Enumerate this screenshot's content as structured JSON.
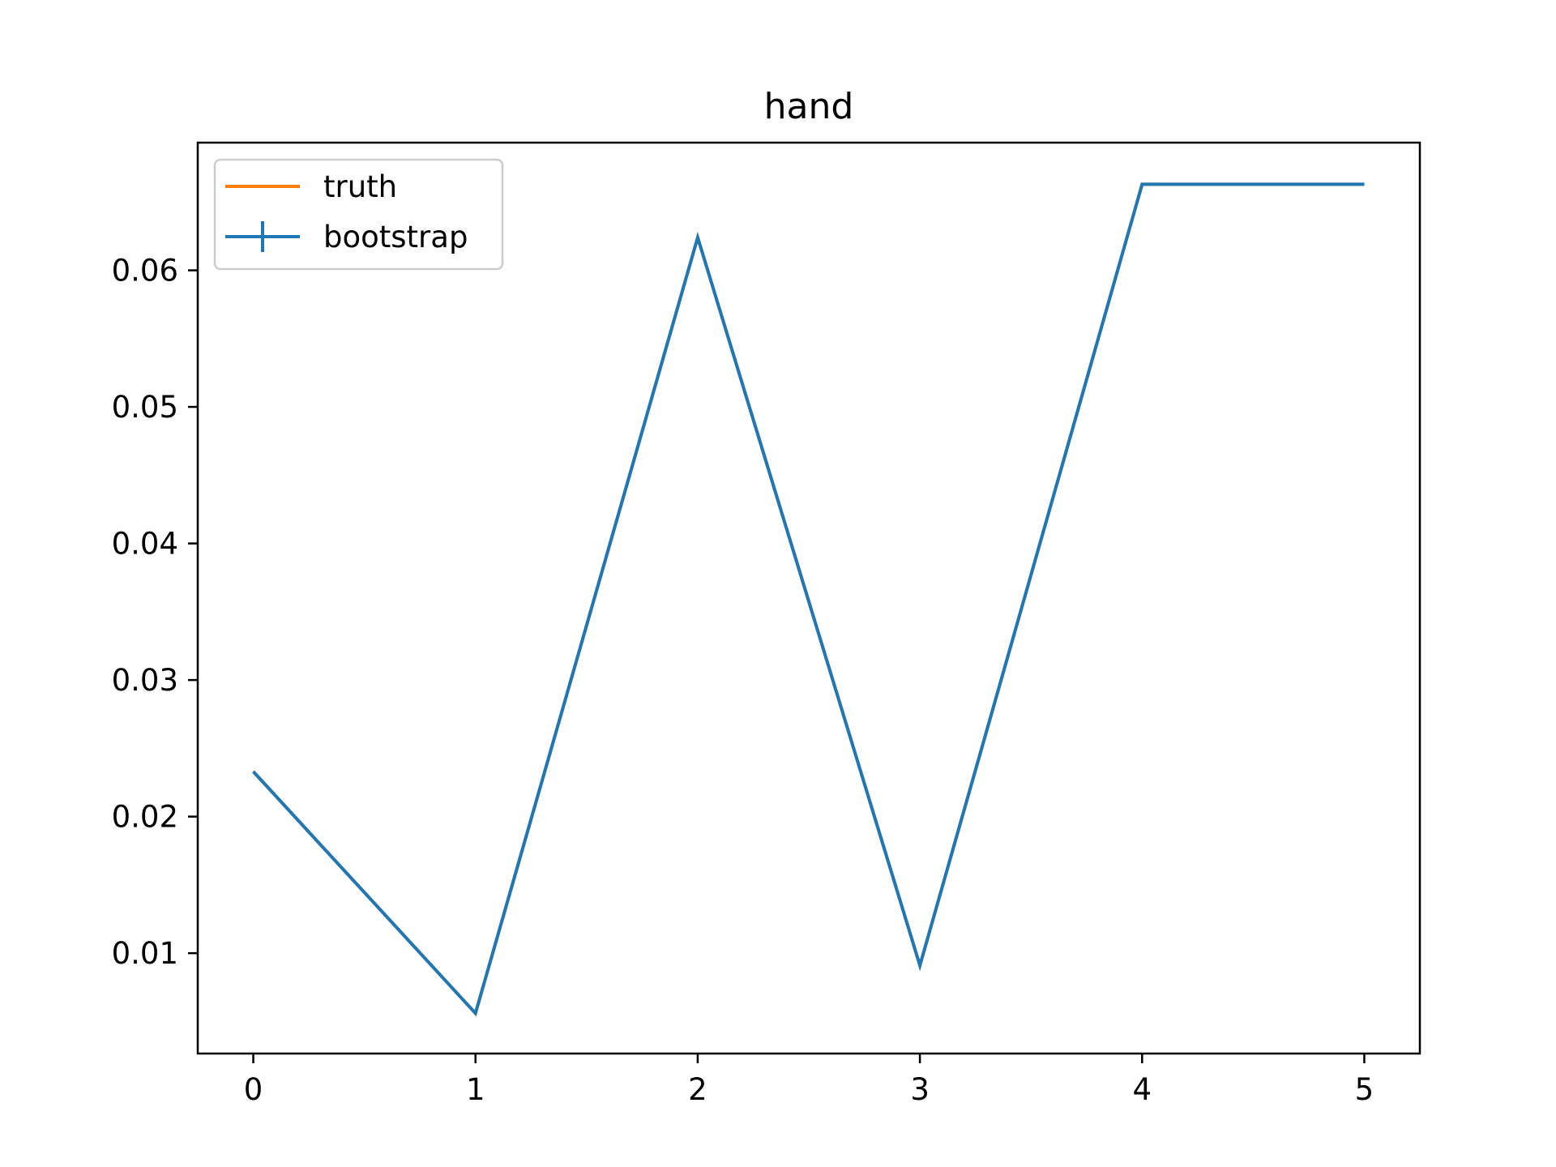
{
  "chart_data": {
    "type": "line",
    "title": "hand",
    "xlabel": "",
    "ylabel": "",
    "xlim": [
      -0.25,
      5.25
    ],
    "ylim": [
      0.00265,
      0.06935
    ],
    "x_ticks": [
      0,
      1,
      2,
      3,
      4,
      5
    ],
    "x_tick_labels": [
      "0",
      "1",
      "2",
      "3",
      "4",
      "5"
    ],
    "y_ticks": [
      0.01,
      0.02,
      0.03,
      0.04,
      0.05,
      0.06
    ],
    "y_tick_labels": [
      "0.01",
      "0.02",
      "0.03",
      "0.04",
      "0.05",
      "0.06"
    ],
    "grid": false,
    "legend_position": "top-left",
    "series": [
      {
        "name": "truth",
        "color": "#ff7f0e",
        "x": [
          0,
          1,
          2,
          3,
          4,
          5
        ],
        "values": [
          0.0233,
          0.0056,
          0.0624,
          0.0091,
          0.0663,
          0.0663
        ]
      },
      {
        "name": "bootstrap",
        "color": "#1f77b4",
        "marker": "errorbar",
        "x": [
          0,
          1,
          2,
          3,
          4,
          5
        ],
        "values": [
          0.0233,
          0.0056,
          0.0624,
          0.0091,
          0.0663,
          0.0663
        ]
      }
    ]
  }
}
